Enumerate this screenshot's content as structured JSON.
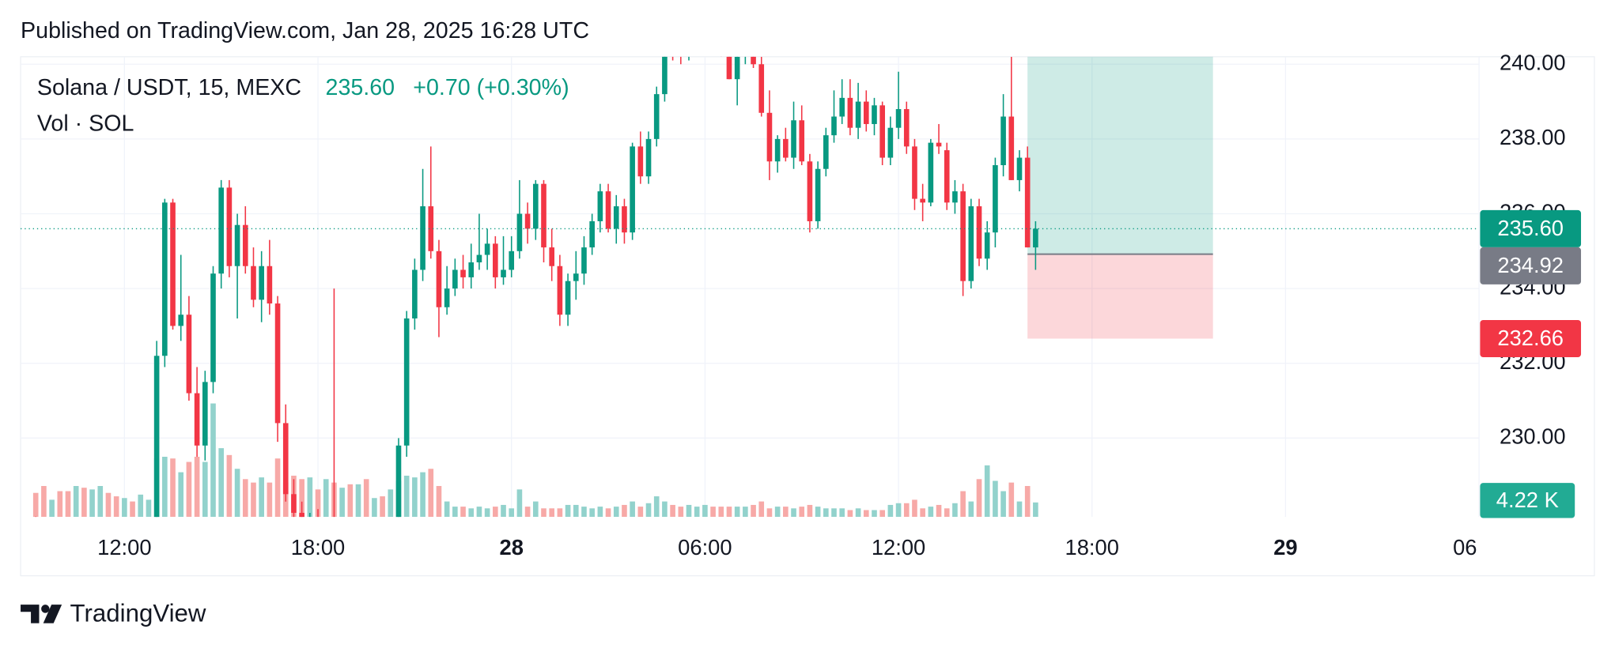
{
  "header": {
    "published": "Published on TradingView.com, Jan 28, 2025 16:28 UTC",
    "symbol": "Solana / USDT, 15, MEXC",
    "price": "235.60",
    "change": "+0.70 (+0.30%)",
    "volume_legend": "Vol · SOL"
  },
  "brand": "TradingView",
  "chart_data": {
    "type": "candlestick",
    "x": [
      9.25,
      9.5,
      9.75,
      10,
      10.25,
      10.5,
      10.75,
      11,
      11.25,
      11.5,
      11.75,
      12,
      12.25,
      12.5,
      12.75,
      13,
      13.25,
      13.5,
      13.75,
      14,
      14.25,
      14.5,
      14.75,
      15,
      15.25,
      15.5,
      15.75,
      16,
      16.25,
      16.5,
      16.75,
      17,
      17.25,
      17.5,
      17.75,
      18,
      18.25,
      18.5,
      18.75,
      19,
      19.25,
      19.5,
      19.75,
      20,
      20.25,
      20.5,
      20.75,
      21,
      21.25,
      21.5,
      21.75,
      22,
      22.25,
      22.5,
      22.75,
      23,
      23.25,
      23.5,
      23.75,
      24,
      24.25,
      24.5,
      24.75,
      25,
      25.25,
      25.5,
      25.75,
      26,
      26.25,
      26.5,
      26.75,
      27,
      27.25,
      27.5,
      27.75,
      28,
      28.25,
      28.5,
      28.75,
      29,
      29.25,
      29.5,
      29.75,
      30,
      30.25,
      30.5,
      30.75,
      31,
      31.25,
      31.5,
      31.75,
      32,
      32.25,
      32.5,
      32.75,
      33,
      33.25,
      33.5,
      33.75,
      34,
      34.25,
      34.5,
      34.75,
      35,
      35.25,
      35.5,
      35.75,
      36,
      36.25,
      36.5,
      36.75,
      37,
      37.25,
      37.5,
      37.75,
      38,
      38.25,
      38.5,
      38.75,
      39,
      39.25,
      39.5,
      39.75,
      40,
      40.25
    ],
    "open": [
      227.6,
      227.4,
      227.2,
      227.3,
      227.1,
      227.0,
      227.2,
      227.0,
      227.1,
      227.3,
      227.0,
      226.8,
      227.0,
      226.9,
      227.1,
      227.3,
      232.2,
      236.3,
      233.0,
      233.3,
      231.2,
      229.8,
      231.5,
      234.4,
      236.7,
      234.6,
      235.7,
      234.6,
      233.7,
      234.6,
      233.6,
      230.4,
      228.5,
      228.0,
      227.6,
      227.8,
      227.4,
      227.6,
      227.3,
      227.5,
      227.2,
      227.4,
      227.1,
      227.3,
      227.0,
      227.2,
      229.8,
      233.2,
      234.5,
      236.2,
      235.0,
      233.5,
      234.0,
      234.5,
      234.3,
      234.7,
      234.9,
      235.2,
      234.3,
      234.5,
      235.0,
      236.0,
      235.6,
      236.8,
      235.1,
      234.6,
      233.3,
      234.2,
      234.4,
      235.1,
      235.8,
      236.6,
      235.6,
      236.2,
      235.5,
      237.8,
      237.0,
      238.0,
      239.2,
      240.8,
      240.5,
      240.3,
      240.6,
      240.8,
      241.0,
      240.8,
      240.4,
      239.6,
      240.2,
      240.6,
      240.0,
      238.7,
      237.4,
      238.0,
      237.5,
      238.5,
      237.4,
      235.8,
      237.2,
      238.1,
      238.6,
      239.1,
      238.3,
      239.0,
      238.4,
      238.9,
      237.5,
      238.3,
      238.8,
      237.8,
      236.4,
      236.3,
      237.9,
      237.7,
      236.3,
      236.6,
      234.2,
      236.2,
      234.8,
      235.5,
      237.3,
      238.6,
      236.9,
      237.5,
      235.1
    ],
    "high": [
      227.9,
      227.7,
      227.5,
      227.6,
      227.4,
      227.3,
      227.5,
      227.3,
      227.4,
      227.5,
      227.3,
      227.2,
      227.3,
      227.2,
      227.4,
      232.6,
      236.4,
      236.4,
      234.9,
      233.8,
      231.9,
      231.8,
      234.6,
      236.9,
      236.9,
      236.0,
      236.2,
      235.1,
      235.0,
      235.3,
      233.8,
      230.9,
      228.9,
      228.3,
      228.0,
      228.1,
      227.8,
      234.0,
      227.7,
      227.8,
      227.5,
      227.7,
      227.4,
      227.6,
      227.4,
      230.0,
      233.4,
      234.8,
      237.2,
      237.8,
      235.3,
      234.6,
      234.8,
      234.9,
      235.2,
      236.0,
      235.6,
      235.4,
      235.4,
      235.4,
      236.9,
      236.3,
      236.9,
      236.9,
      235.6,
      234.9,
      234.4,
      235.0,
      235.4,
      236.0,
      236.8,
      236.8,
      236.5,
      236.4,
      237.9,
      238.2,
      238.2,
      239.4,
      240.9,
      241.2,
      240.9,
      240.8,
      241.0,
      241.2,
      241.3,
      241.0,
      240.5,
      240.3,
      240.9,
      240.6,
      240.2,
      239.3,
      238.1,
      238.3,
      239.0,
      238.9,
      237.6,
      237.4,
      238.3,
      239.3,
      239.6,
      239.6,
      239.5,
      239.3,
      239.1,
      239.0,
      238.6,
      239.8,
      239.0,
      238.0,
      236.8,
      238.0,
      238.4,
      237.9,
      236.9,
      236.8,
      236.4,
      236.4,
      235.8,
      237.5,
      239.2,
      240.2,
      237.7,
      237.8,
      235.8
    ],
    "low": [
      227.2,
      227.0,
      226.9,
      227.0,
      226.8,
      226.7,
      226.9,
      226.7,
      226.8,
      226.9,
      226.6,
      226.5,
      226.7,
      226.6,
      226.8,
      227.1,
      231.9,
      232.9,
      232.6,
      231.0,
      229.5,
      229.4,
      231.2,
      234.0,
      234.3,
      233.2,
      234.4,
      233.5,
      233.1,
      233.3,
      229.9,
      228.3,
      227.6,
      227.3,
      227.2,
      227.2,
      227.0,
      227.1,
      226.9,
      227.0,
      226.8,
      226.9,
      226.8,
      226.9,
      226.7,
      227.0,
      229.5,
      232.9,
      234.2,
      234.8,
      232.7,
      233.3,
      233.8,
      234.0,
      234.0,
      234.5,
      234.5,
      234.0,
      234.1,
      234.3,
      234.8,
      235.2,
      235.3,
      234.7,
      234.2,
      233.0,
      233.0,
      233.7,
      234.1,
      234.9,
      235.5,
      235.5,
      235.2,
      235.2,
      235.3,
      236.8,
      236.8,
      237.8,
      239.0,
      240.1,
      240.0,
      240.1,
      240.3,
      240.5,
      240.6,
      240.2,
      239.6,
      238.9,
      240.0,
      239.9,
      238.6,
      236.9,
      237.1,
      237.4,
      237.2,
      237.3,
      235.5,
      235.6,
      237.0,
      237.9,
      238.4,
      238.1,
      238.0,
      238.2,
      238.1,
      237.3,
      237.3,
      238.0,
      237.6,
      236.1,
      235.8,
      236.2,
      237.6,
      236.1,
      236.0,
      233.8,
      234.0,
      234.6,
      234.5,
      235.1,
      237.0,
      236.9,
      236.6,
      235.1,
      234.5
    ],
    "close": [
      227.4,
      227.2,
      227.3,
      227.1,
      227.0,
      227.2,
      227.0,
      227.1,
      227.3,
      227.0,
      226.8,
      227.0,
      226.9,
      227.1,
      227.3,
      232.2,
      236.3,
      233.0,
      233.3,
      231.2,
      229.8,
      231.5,
      234.4,
      236.7,
      234.6,
      235.7,
      234.6,
      233.7,
      234.6,
      233.6,
      230.4,
      228.5,
      228.0,
      227.6,
      227.8,
      227.4,
      227.6,
      227.3,
      227.5,
      227.2,
      227.4,
      227.1,
      227.3,
      227.0,
      227.2,
      229.8,
      233.2,
      234.5,
      236.2,
      235.0,
      233.5,
      234.0,
      234.5,
      234.3,
      234.7,
      234.9,
      235.2,
      234.3,
      234.5,
      235.0,
      236.0,
      235.6,
      236.8,
      235.1,
      234.6,
      233.3,
      234.2,
      234.4,
      235.1,
      235.8,
      236.6,
      235.6,
      236.2,
      235.5,
      237.8,
      237.0,
      238.0,
      239.2,
      240.8,
      240.5,
      240.3,
      240.6,
      240.8,
      241.0,
      240.8,
      240.4,
      239.6,
      240.2,
      240.6,
      240.0,
      238.7,
      237.4,
      238.0,
      237.5,
      238.5,
      237.4,
      235.8,
      237.2,
      238.1,
      238.6,
      239.1,
      238.3,
      239.0,
      238.4,
      238.9,
      237.5,
      238.3,
      238.8,
      237.8,
      236.4,
      236.3,
      237.9,
      237.8,
      236.3,
      236.6,
      234.2,
      236.2,
      234.8,
      235.5,
      237.3,
      238.6,
      236.9,
      237.5,
      235.1,
      235.6
    ],
    "volume": [
      7000,
      9000,
      5000,
      7500,
      7500,
      9000,
      8500,
      8000,
      9000,
      7000,
      6000,
      5500,
      4500,
      6500,
      5000,
      17000,
      17500,
      17000,
      13000,
      16000,
      17500,
      16000,
      33000,
      20000,
      18000,
      14000,
      11000,
      10000,
      11500,
      10000,
      17000,
      10000,
      12000,
      11000,
      11500,
      8000,
      11000,
      10000,
      8500,
      9500,
      9500,
      11000,
      5500,
      6000,
      8000,
      10500,
      12000,
      11500,
      13000,
      14000,
      9000,
      4500,
      3000,
      3000,
      2500,
      3000,
      2500,
      3000,
      3500,
      2500,
      8000,
      3000,
      4500,
      2500,
      2500,
      2500,
      3500,
      3500,
      3000,
      2500,
      3000,
      2500,
      3000,
      3500,
      4500,
      3000,
      4000,
      6000,
      4500,
      3500,
      3000,
      3500,
      3000,
      3500,
      3000,
      3000,
      3000,
      3000,
      3000,
      3500,
      4500,
      2500,
      3000,
      3000,
      2500,
      3000,
      3500,
      3000,
      2500,
      2500,
      2500,
      2000,
      2500,
      2000,
      2000,
      2000,
      3500,
      4000,
      4000,
      5000,
      2500,
      3000,
      3500,
      2500,
      4000,
      7500,
      4500,
      11000,
      15000,
      10500,
      7500,
      10000,
      4500,
      9000,
      4220
    ],
    "up_color": "#089981",
    "down_color": "#f23645",
    "volume_up_color": "#92d2cc",
    "volume_down_color": "#f7a9a7",
    "xlim": [
      8.78,
      54.0
    ],
    "xticks": [
      {
        "value": 12,
        "label": "12:00"
      },
      {
        "value": 18,
        "label": "18:00"
      },
      {
        "value": 24,
        "label": "28",
        "bold": true
      },
      {
        "value": 30,
        "label": "06:00"
      },
      {
        "value": 36,
        "label": "12:00"
      },
      {
        "value": 42,
        "label": "18:00"
      },
      {
        "value": 48,
        "label": "29",
        "bold": true
      },
      {
        "value": 54,
        "label": "06"
      }
    ],
    "ylim": [
      228,
      240.2
    ],
    "yticks": [
      {
        "value": 230,
        "label": "230.00"
      },
      {
        "value": 232,
        "label": "232.00"
      },
      {
        "value": 234,
        "label": "234.00"
      },
      {
        "value": 236,
        "label": "236.00"
      },
      {
        "value": 238,
        "label": "238.00"
      },
      {
        "value": 240,
        "label": "240.00"
      }
    ],
    "grid": true,
    "badges": [
      {
        "value": 235.6,
        "label": "235.60",
        "color": "#089981"
      },
      {
        "value": 234.92,
        "label": "234.92",
        "color": "#787b86"
      },
      {
        "value": 232.66,
        "label": "232.66",
        "color": "#f23645"
      }
    ],
    "volume_badge": {
      "value": 4220,
      "label": "4.22 K",
      "color": "#22ab94"
    },
    "position": {
      "entry": 234.92,
      "target": 240.2,
      "stop": 232.66,
      "x": [
        40,
        45.75
      ]
    }
  }
}
